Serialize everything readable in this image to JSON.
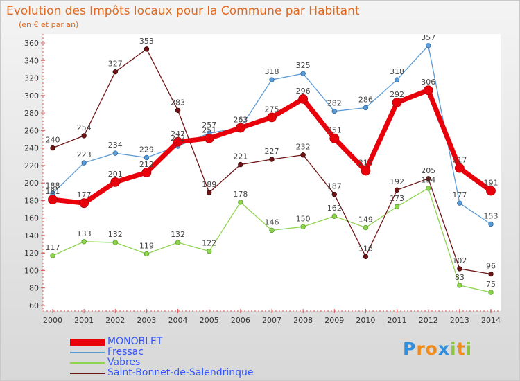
{
  "header": {
    "title": "Evolution des Impôts locaux pour la Commune par Habitant",
    "subtitle": "(en € et par an)"
  },
  "colors": {
    "title": "#e06a22",
    "legend_text": "#3355ff",
    "MONOBLET": "#e8000b",
    "Fressac": "#5b9bd5",
    "Vabres": "#8ed44e",
    "Saint-Bonnet-de-Salendrinque": "#6e1416"
  },
  "logo": {
    "text": "Proxiti",
    "letter_colors": [
      "#2f8fe0",
      "#f08c1c",
      "#f08c1c",
      "#2f8fe0",
      "#8cc63f",
      "#f08c1c",
      "#8cc63f"
    ]
  },
  "chart_data": {
    "type": "line",
    "title": "Evolution des Impôts locaux pour la Commune par Habitant",
    "subtitle": "(en € et par an)",
    "xlabel": "",
    "ylabel": "",
    "x": [
      2000,
      2001,
      2002,
      2003,
      2004,
      2005,
      2006,
      2007,
      2008,
      2009,
      2010,
      2011,
      2012,
      2013,
      2014
    ],
    "ylim": [
      60,
      360
    ],
    "yticks": [
      60,
      80,
      100,
      120,
      140,
      160,
      180,
      200,
      220,
      240,
      260,
      280,
      300,
      320,
      340,
      360
    ],
    "grid": false,
    "legend_position": "bottom-left",
    "series": [
      {
        "name": "MONOBLET",
        "values": [
          181,
          177,
          201,
          212,
          247,
          251,
          263,
          275,
          296,
          251,
          214,
          292,
          306,
          217,
          191
        ],
        "labels": [
          "181",
          "177",
          "201",
          "212",
          "247",
          "251",
          "263",
          "275",
          "296",
          "251",
          "214",
          "292",
          "306",
          "217",
          "191"
        ]
      },
      {
        "name": "Fressac",
        "values": [
          188,
          223,
          234,
          229,
          242,
          257,
          263,
          318,
          325,
          282,
          286,
          318,
          357,
          177,
          153
        ],
        "labels": [
          "188",
          "223",
          "234",
          "229",
          "242",
          "257",
          "263",
          "318",
          "325",
          "282",
          "286",
          "318",
          "357",
          "177",
          "153"
        ]
      },
      {
        "name": "Vabres",
        "values": [
          117,
          133,
          132,
          119,
          132,
          122,
          178,
          146,
          150,
          162,
          149,
          173,
          194,
          83,
          75
        ],
        "labels": [
          "117",
          "133",
          "132",
          "119",
          "132",
          "122",
          "178",
          "146",
          "150",
          "162",
          "149",
          "173",
          "194",
          "83",
          "75"
        ]
      },
      {
        "name": "Saint-Bonnet-de-Salendrinque",
        "values": [
          240,
          254,
          327,
          353,
          283,
          189,
          221,
          227,
          232,
          187,
          116,
          192,
          205,
          102,
          96
        ],
        "labels": [
          "240",
          "254",
          "327",
          "353",
          "283",
          "189",
          "221",
          "227",
          "232",
          "187",
          "116",
          "192",
          "205",
          "102",
          "96"
        ]
      }
    ]
  }
}
